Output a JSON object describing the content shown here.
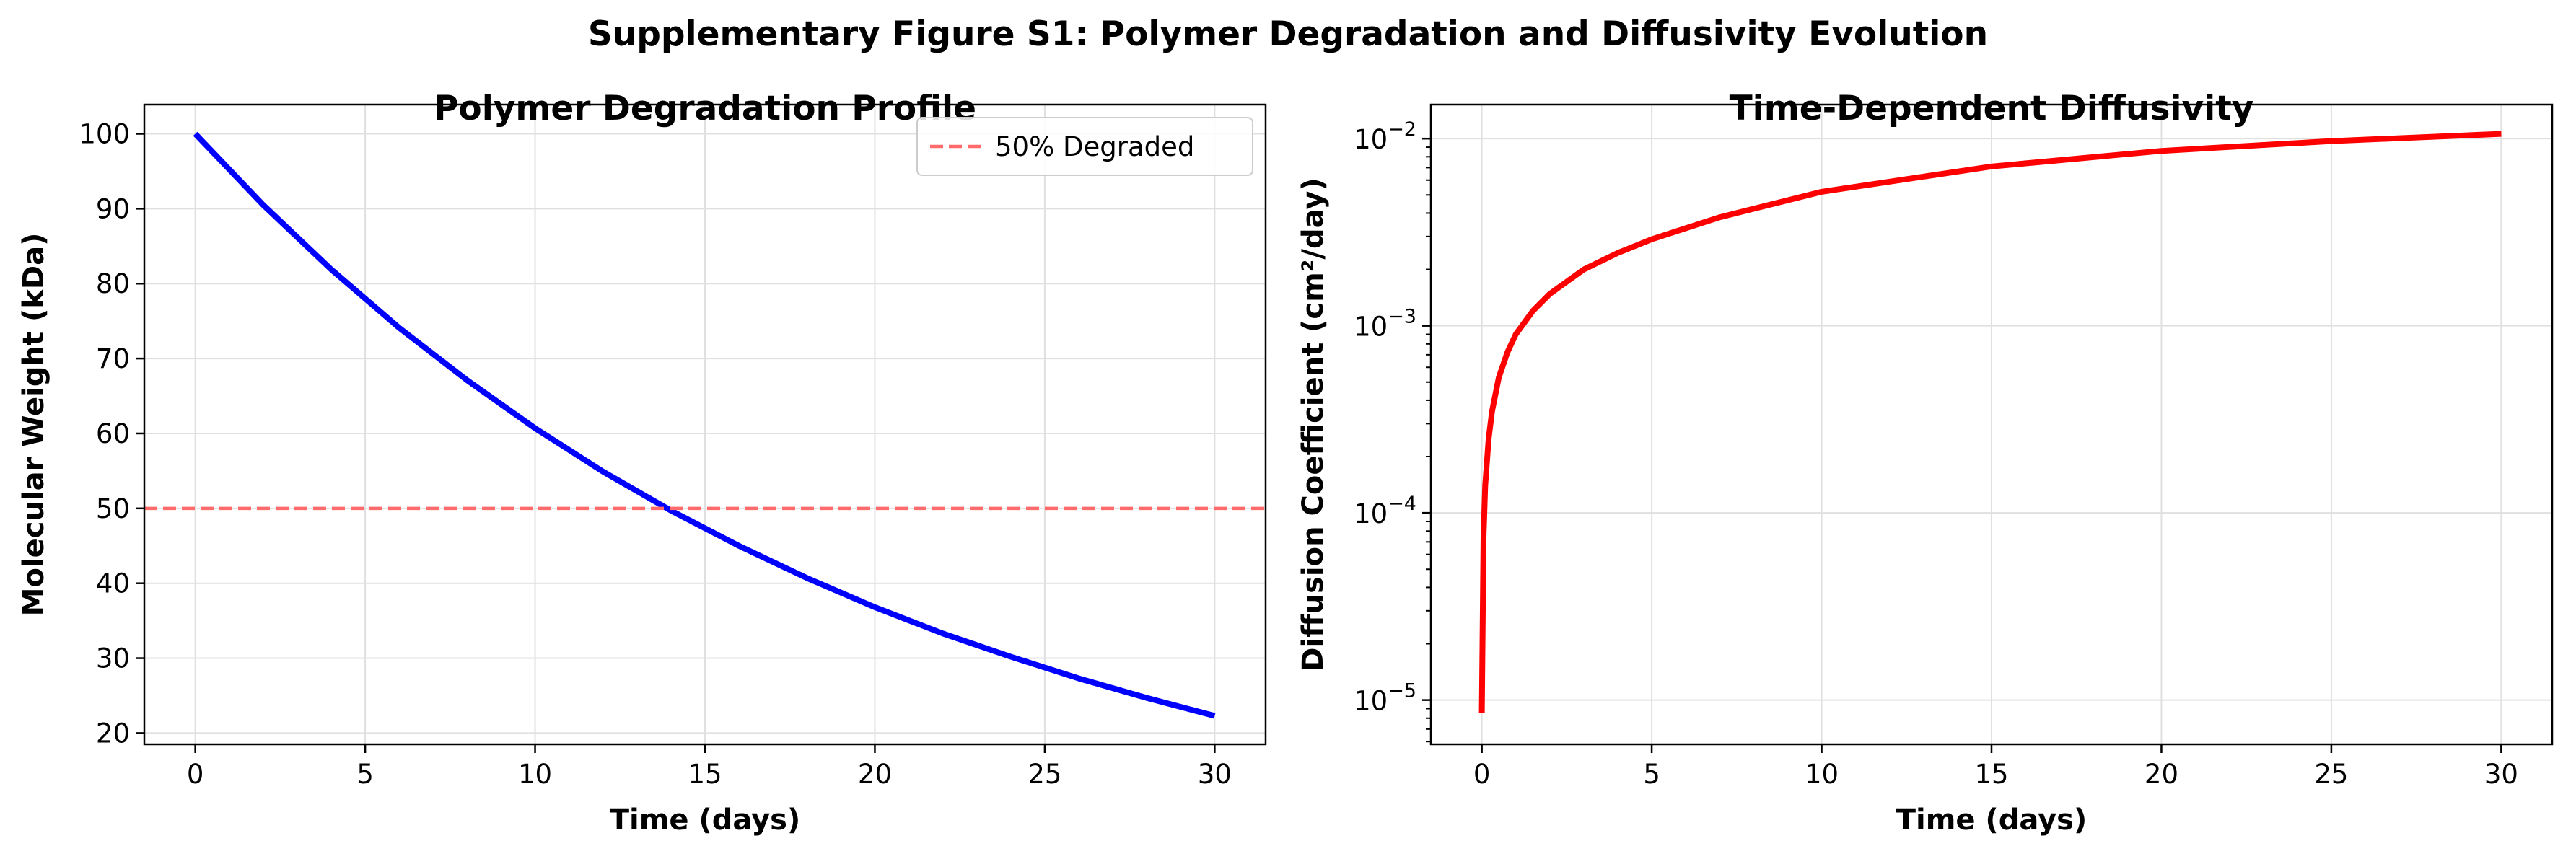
{
  "figure_title": "Supplementary Figure S1: Polymer Degradation and Diffusivity Evolution",
  "colors": {
    "degradation_line": "#0000ff",
    "reference_line": "#ff6b6b",
    "diffusivity_line": "#ff0000",
    "grid": "#e0e0e0"
  },
  "chart_data": [
    {
      "type": "line",
      "title": "Polymer Degradation Profile",
      "xlabel": "Time (days)",
      "ylabel": "Molecular Weight (kDa)",
      "xlim": [
        -1.5,
        31.5
      ],
      "ylim": [
        18.5,
        103.9
      ],
      "xticks": [
        0,
        5,
        10,
        15,
        20,
        25,
        30
      ],
      "yticks": [
        20,
        30,
        40,
        50,
        60,
        70,
        80,
        90,
        100
      ],
      "grid": true,
      "legend_position": "top-right",
      "series": [
        {
          "role": "degradation_curve",
          "x": [
            0,
            2,
            4,
            6,
            8,
            10,
            12,
            14,
            16,
            18,
            20,
            22,
            24,
            26,
            28,
            30
          ],
          "y": [
            100,
            90.5,
            81.9,
            74.1,
            67.1,
            60.7,
            54.9,
            49.7,
            45.0,
            40.7,
            36.8,
            33.3,
            30.2,
            27.3,
            24.7,
            22.3
          ]
        },
        {
          "role": "reference_line",
          "name": "50% Degraded",
          "y": 50,
          "style": "dashed"
        }
      ]
    },
    {
      "type": "line",
      "title": "Time-Dependent Diffusivity",
      "xlabel": "Time (days)",
      "ylabel": "Diffusion Coefficient (cm²/day)",
      "xlim": [
        -1.5,
        31.5
      ],
      "ylim": [
        5.8e-06,
        0.0152
      ],
      "yscale": "log",
      "xticks": [
        0,
        5,
        10,
        15,
        20,
        25,
        30
      ],
      "yticks": [
        {
          "value": 1e-05,
          "base": "10",
          "exp": "−5"
        },
        {
          "value": 0.0001,
          "base": "10",
          "exp": "−4"
        },
        {
          "value": 0.001,
          "base": "10",
          "exp": "−3"
        },
        {
          "value": 0.01,
          "base": "10",
          "exp": "−2"
        }
      ],
      "grid": true,
      "series": [
        {
          "role": "diffusivity_curve",
          "x": [
            0,
            0.05,
            0.1,
            0.2,
            0.3,
            0.5,
            0.75,
            1,
            1.5,
            2,
            3,
            4,
            5,
            7,
            10,
            15,
            20,
            25,
            30
          ],
          "y": [
            8.5e-06,
            7.5e-05,
            0.00014,
            0.00025,
            0.00035,
            0.00053,
            0.00072,
            0.0009,
            0.0012,
            0.00148,
            0.002,
            0.00245,
            0.0029,
            0.0038,
            0.0052,
            0.0071,
            0.0086,
            0.0097,
            0.0106
          ]
        }
      ]
    }
  ]
}
